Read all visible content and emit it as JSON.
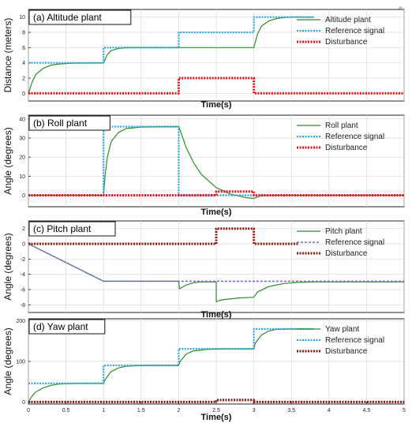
{
  "corner_mark": "(*",
  "chart_data": [
    {
      "type": "line",
      "title": "(a) Altitude plant",
      "xlabel": "Time(s)",
      "ylabel": "Distance (meters)",
      "xlim": [
        0,
        5
      ],
      "ylim": [
        -1,
        11
      ],
      "yticks": [
        0,
        2,
        4,
        6,
        8,
        10
      ],
      "show_x_ticks": false,
      "grid": true,
      "legend_position": "top-right",
      "series": [
        {
          "name": "Altitude plant",
          "color": "#2e8b2e",
          "style": "solid",
          "x": [
            0,
            0.05,
            0.1,
            0.2,
            0.3,
            0.4,
            0.6,
            1.0,
            1.01,
            1.05,
            1.1,
            1.2,
            1.3,
            1.5,
            2.0,
            3.0,
            3.01,
            3.05,
            3.1,
            3.2,
            3.3,
            3.4,
            3.5,
            3.8
          ],
          "y": [
            0,
            1.5,
            2.5,
            3.3,
            3.7,
            3.85,
            3.97,
            4.0,
            4.2,
            5.1,
            5.6,
            5.9,
            5.98,
            6.0,
            6.0,
            6.0,
            6.4,
            7.8,
            8.8,
            9.5,
            9.8,
            9.95,
            10.0,
            10.0
          ]
        },
        {
          "name": "Reference signal",
          "color": "#2aa7e0",
          "style": "dotted",
          "x": [
            0,
            1,
            1,
            2,
            2,
            3,
            3,
            3.8
          ],
          "y": [
            4,
            4,
            6,
            6,
            8,
            8,
            10,
            10
          ]
        },
        {
          "name": "Disturbance",
          "color": "#e8141b",
          "style": "dotted-thick",
          "x": [
            0,
            2,
            2,
            3,
            3,
            5
          ],
          "y": [
            0,
            0,
            2,
            2,
            0,
            0
          ]
        }
      ]
    },
    {
      "type": "line",
      "title": "(b) Roll plant",
      "xlabel": "Time(s)",
      "ylabel": "Angle (degrees)",
      "xlim": [
        0,
        5
      ],
      "ylim": [
        -6,
        42
      ],
      "yticks": [
        0,
        10,
        20,
        30,
        40
      ],
      "show_x_ticks": false,
      "grid": true,
      "legend_position": "top-right",
      "series": [
        {
          "name": "Roll plant",
          "color": "#2e8b2e",
          "style": "solid",
          "x": [
            0,
            1.0,
            1.02,
            1.05,
            1.1,
            1.2,
            1.3,
            1.5,
            2.0,
            2.02,
            2.1,
            2.2,
            2.3,
            2.5,
            2.7,
            2.9,
            3.0,
            3.05,
            3.1,
            3.2,
            3.5,
            5.0
          ],
          "y": [
            0,
            0,
            10,
            20,
            28,
            33,
            35,
            35.8,
            36,
            34,
            25,
            17,
            11,
            4,
            0.5,
            -1.3,
            -1.6,
            -0.8,
            -0.2,
            0,
            0,
            0
          ]
        },
        {
          "name": "Reference signal",
          "color": "#2aa7e0",
          "style": "dotted",
          "x": [
            0,
            1,
            1,
            2,
            2,
            5
          ],
          "y": [
            0,
            0,
            36,
            36,
            0,
            0
          ]
        },
        {
          "name": "Disturbance",
          "color": "#e8141b",
          "style": "dotted-thick",
          "x": [
            0,
            2.5,
            2.5,
            3,
            3,
            5
          ],
          "y": [
            0,
            0,
            2,
            2,
            0,
            0
          ]
        }
      ]
    },
    {
      "type": "line",
      "title": "(c) Pitch plant",
      "xlabel": "Time(s)",
      "ylabel": "Angle (degrees)",
      "xlim": [
        0,
        5
      ],
      "ylim": [
        -9,
        3
      ],
      "yticks": [
        2,
        0,
        -2,
        -4,
        -6,
        -8
      ],
      "show_x_ticks": false,
      "grid": true,
      "legend_position": "top-right",
      "series": [
        {
          "name": "Pitch plant",
          "color": "#2e8b2e",
          "style": "solid",
          "x": [
            0,
            1.0,
            2.0,
            2.01,
            2.1,
            2.2,
            2.3,
            2.5,
            2.5,
            2.55,
            2.6,
            2.8,
            3.0,
            3.05,
            3.2,
            3.4,
            3.6,
            3.8,
            5.0
          ],
          "y": [
            0,
            -4.9,
            -4.9,
            -5.9,
            -5.4,
            -5.1,
            -5.0,
            -5.0,
            -7.6,
            -7.4,
            -7.3,
            -7.1,
            -7.0,
            -6.3,
            -5.6,
            -5.2,
            -5.05,
            -5.0,
            -5.0
          ]
        },
        {
          "name": "Reference signal",
          "color": "#7d6ad6",
          "style": "dashed",
          "x": [
            0,
            1,
            5
          ],
          "y": [
            0,
            -4.9,
            -4.9
          ]
        },
        {
          "name": "Disturbance",
          "color": "#8b1a10",
          "style": "dotted-thick",
          "x": [
            0,
            2.5,
            2.5,
            3,
            3,
            3.6
          ],
          "y": [
            0,
            0,
            2,
            2,
            0,
            0
          ]
        }
      ]
    },
    {
      "type": "line",
      "title": "(d) Yaw plant",
      "xlabel": "Time(s)",
      "ylabel": "Angle (degrees)",
      "xlim": [
        0,
        5
      ],
      "ylim": [
        -5,
        205
      ],
      "yticks": [
        0,
        100,
        200
      ],
      "xticks": [
        0,
        0.5,
        1,
        1.5,
        2,
        2.5,
        3,
        3.5,
        4,
        4.5,
        5
      ],
      "show_x_ticks": true,
      "grid": true,
      "legend_position": "top-right",
      "series": [
        {
          "name": "Yaw plant",
          "color": "#2e8b2e",
          "style": "solid",
          "x": [
            0,
            0.05,
            0.1,
            0.2,
            0.3,
            0.4,
            0.6,
            1.0,
            1.02,
            1.1,
            1.2,
            1.3,
            1.5,
            2.0,
            2.02,
            2.1,
            2.2,
            2.4,
            2.6,
            3.0,
            3.02,
            3.1,
            3.2,
            3.3,
            3.5,
            3.8
          ],
          "y": [
            0,
            15,
            25,
            35,
            41,
            44,
            46,
            46,
            55,
            75,
            84,
            88,
            90,
            90,
            100,
            118,
            126,
            130,
            131,
            131,
            145,
            165,
            175,
            179,
            180,
            180
          ]
        },
        {
          "name": "Reference signal",
          "color": "#2aa7e0",
          "style": "dotted",
          "x": [
            0,
            1,
            1,
            2,
            2,
            3,
            3,
            3.8
          ],
          "y": [
            46,
            46,
            90,
            90,
            131,
            131,
            180,
            180
          ]
        },
        {
          "name": "Disturbance",
          "color": "#8b1a10",
          "style": "dotted-thick",
          "x": [
            0,
            2.5,
            2.5,
            3,
            3,
            5
          ],
          "y": [
            0,
            0,
            5,
            5,
            0,
            0
          ]
        }
      ]
    }
  ]
}
